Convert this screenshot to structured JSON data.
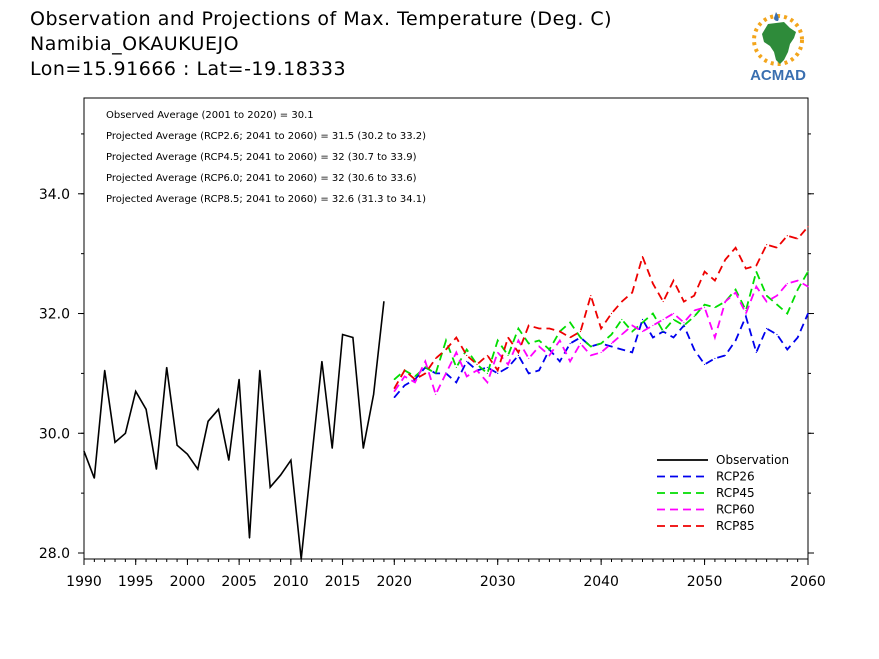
{
  "header": {
    "title": "Observation and Projections of Max. Temperature (Deg. C)",
    "location": "Namibia_OKAUKUEJO",
    "coords": "Lon=15.91666 : Lat=-19.18333"
  },
  "logo": {
    "text": "ACMAD",
    "accent": "#3a6fb0",
    "africa_color": "#2e8b3a"
  },
  "annotations": [
    "Observed Average (2001 to 2020) = 30.1",
    "Projected Average (RCP2.6; 2041 to 2060) = 31.5 (30.2 to 33.2)",
    "Projected Average (RCP4.5; 2041 to 2060) = 32 (30.7 to 33.9)",
    "Projected Average (RCP6.0; 2041 to 2060) = 32 (30.6 to 33.6)",
    "Projected Average (RCP8.5; 2041 to 2060) = 32.6 (31.3 to 34.1)"
  ],
  "chart_data": {
    "type": "line",
    "xlim": [
      1990,
      2060
    ],
    "ylim": [
      27.9,
      35.6
    ],
    "x_ticks": [
      "1990",
      "1995",
      "2000",
      "2005",
      "2010",
      "2015",
      "2020",
      "2030",
      "2040",
      "2050",
      "2060"
    ],
    "x_tick_values": [
      1990,
      1995,
      2000,
      2005,
      2010,
      2015,
      2020,
      2030,
      2040,
      2050,
      2060
    ],
    "y_ticks": [
      "28.0",
      "30.0",
      "32.0",
      "34.0"
    ],
    "y_tick_values": [
      28,
      30,
      32,
      34
    ],
    "grid": false,
    "legend_position": "bottom-right",
    "series": [
      {
        "name": "Observation",
        "color": "#000000",
        "dashed": false,
        "x": [
          1990,
          1991,
          1992,
          1993,
          1994,
          1995,
          1996,
          1997,
          1998,
          1999,
          2000,
          2001,
          2002,
          2003,
          2004,
          2005,
          2006,
          2007,
          2008,
          2009,
          2010,
          2011,
          2012,
          2013,
          2014,
          2015,
          2016,
          2017,
          2018,
          2019,
          2020
        ],
        "y": [
          29.7,
          29.25,
          31.05,
          29.85,
          30.0,
          30.7,
          30.4,
          29.4,
          31.1,
          29.8,
          29.65,
          29.4,
          30.2,
          30.4,
          29.55,
          30.9,
          28.25,
          31.05,
          29.1,
          29.3,
          29.55,
          27.9,
          29.55,
          31.2,
          29.75,
          31.65,
          31.6,
          29.75,
          30.65,
          32.2,
          null
        ]
      },
      {
        "name": "RCP26",
        "color": "#0000ee",
        "dashed": true,
        "x": [
          2020,
          2021,
          2022,
          2023,
          2024,
          2025,
          2026,
          2027,
          2028,
          2029,
          2030,
          2031,
          2032,
          2033,
          2034,
          2035,
          2036,
          2037,
          2038,
          2039,
          2040,
          2041,
          2042,
          2043,
          2044,
          2045,
          2046,
          2047,
          2048,
          2049,
          2050,
          2051,
          2052,
          2053,
          2054,
          2055,
          2056,
          2057,
          2058,
          2059,
          2060
        ],
        "y": [
          30.6,
          30.8,
          30.9,
          31.1,
          31.0,
          31.0,
          30.85,
          31.2,
          31.05,
          31.1,
          31.0,
          31.1,
          31.3,
          31.0,
          31.05,
          31.4,
          31.2,
          31.5,
          31.6,
          31.45,
          31.5,
          31.45,
          31.4,
          31.35,
          31.9,
          31.6,
          31.7,
          31.6,
          31.8,
          31.4,
          31.15,
          31.25,
          31.3,
          31.55,
          31.95,
          31.35,
          31.75,
          31.65,
          31.4,
          31.6,
          32.0
        ]
      },
      {
        "name": "RCP45",
        "color": "#00dd00",
        "dashed": true,
        "x": [
          2020,
          2021,
          2022,
          2023,
          2024,
          2025,
          2026,
          2027,
          2028,
          2029,
          2030,
          2031,
          2032,
          2033,
          2034,
          2035,
          2036,
          2037,
          2038,
          2039,
          2040,
          2041,
          2042,
          2043,
          2044,
          2045,
          2046,
          2047,
          2048,
          2049,
          2050,
          2051,
          2052,
          2053,
          2054,
          2055,
          2056,
          2057,
          2058,
          2059,
          2060
        ],
        "y": [
          30.9,
          31.05,
          30.95,
          31.1,
          31.0,
          31.55,
          31.1,
          31.4,
          31.15,
          31.0,
          31.55,
          31.3,
          31.75,
          31.5,
          31.55,
          31.4,
          31.7,
          31.85,
          31.6,
          31.45,
          31.5,
          31.65,
          31.9,
          31.7,
          31.85,
          32.0,
          31.7,
          31.9,
          31.8,
          31.95,
          32.15,
          32.1,
          32.2,
          32.4,
          32.05,
          32.7,
          32.3,
          32.15,
          32.0,
          32.4,
          32.7
        ]
      },
      {
        "name": "RCP60",
        "color": "#ff00ff",
        "dashed": true,
        "x": [
          2020,
          2021,
          2022,
          2023,
          2024,
          2025,
          2026,
          2027,
          2028,
          2029,
          2030,
          2031,
          2032,
          2033,
          2034,
          2035,
          2036,
          2037,
          2038,
          2039,
          2040,
          2041,
          2042,
          2043,
          2044,
          2045,
          2046,
          2047,
          2048,
          2049,
          2050,
          2051,
          2052,
          2053,
          2054,
          2055,
          2056,
          2057,
          2058,
          2059,
          2060
        ],
        "y": [
          30.7,
          30.95,
          30.85,
          31.2,
          30.65,
          31.0,
          31.35,
          30.95,
          31.05,
          30.85,
          31.35,
          31.15,
          31.55,
          31.25,
          31.45,
          31.3,
          31.55,
          31.2,
          31.5,
          31.3,
          31.35,
          31.5,
          31.65,
          31.8,
          31.7,
          31.8,
          31.9,
          32.0,
          31.85,
          32.05,
          32.1,
          31.6,
          32.2,
          32.35,
          32.0,
          32.45,
          32.2,
          32.3,
          32.5,
          32.55,
          32.45
        ]
      },
      {
        "name": "RCP85",
        "color": "#ee0000",
        "dashed": true,
        "x": [
          2020,
          2021,
          2022,
          2023,
          2024,
          2025,
          2026,
          2027,
          2028,
          2029,
          2030,
          2031,
          2032,
          2033,
          2034,
          2035,
          2036,
          2037,
          2038,
          2039,
          2040,
          2041,
          2042,
          2043,
          2044,
          2045,
          2046,
          2047,
          2048,
          2049,
          2050,
          2051,
          2052,
          2053,
          2054,
          2055,
          2056,
          2057,
          2058,
          2059,
          2060
        ],
        "y": [
          30.75,
          31.05,
          30.9,
          31.0,
          31.25,
          31.4,
          31.6,
          31.3,
          31.15,
          31.3,
          31.05,
          31.6,
          31.35,
          31.8,
          31.75,
          31.75,
          31.7,
          31.6,
          31.7,
          32.3,
          31.75,
          32.0,
          32.2,
          32.35,
          32.95,
          32.5,
          32.2,
          32.55,
          32.2,
          32.3,
          32.7,
          32.55,
          32.9,
          33.1,
          32.75,
          32.8,
          33.15,
          33.1,
          33.3,
          33.25,
          33.45
        ]
      }
    ]
  }
}
